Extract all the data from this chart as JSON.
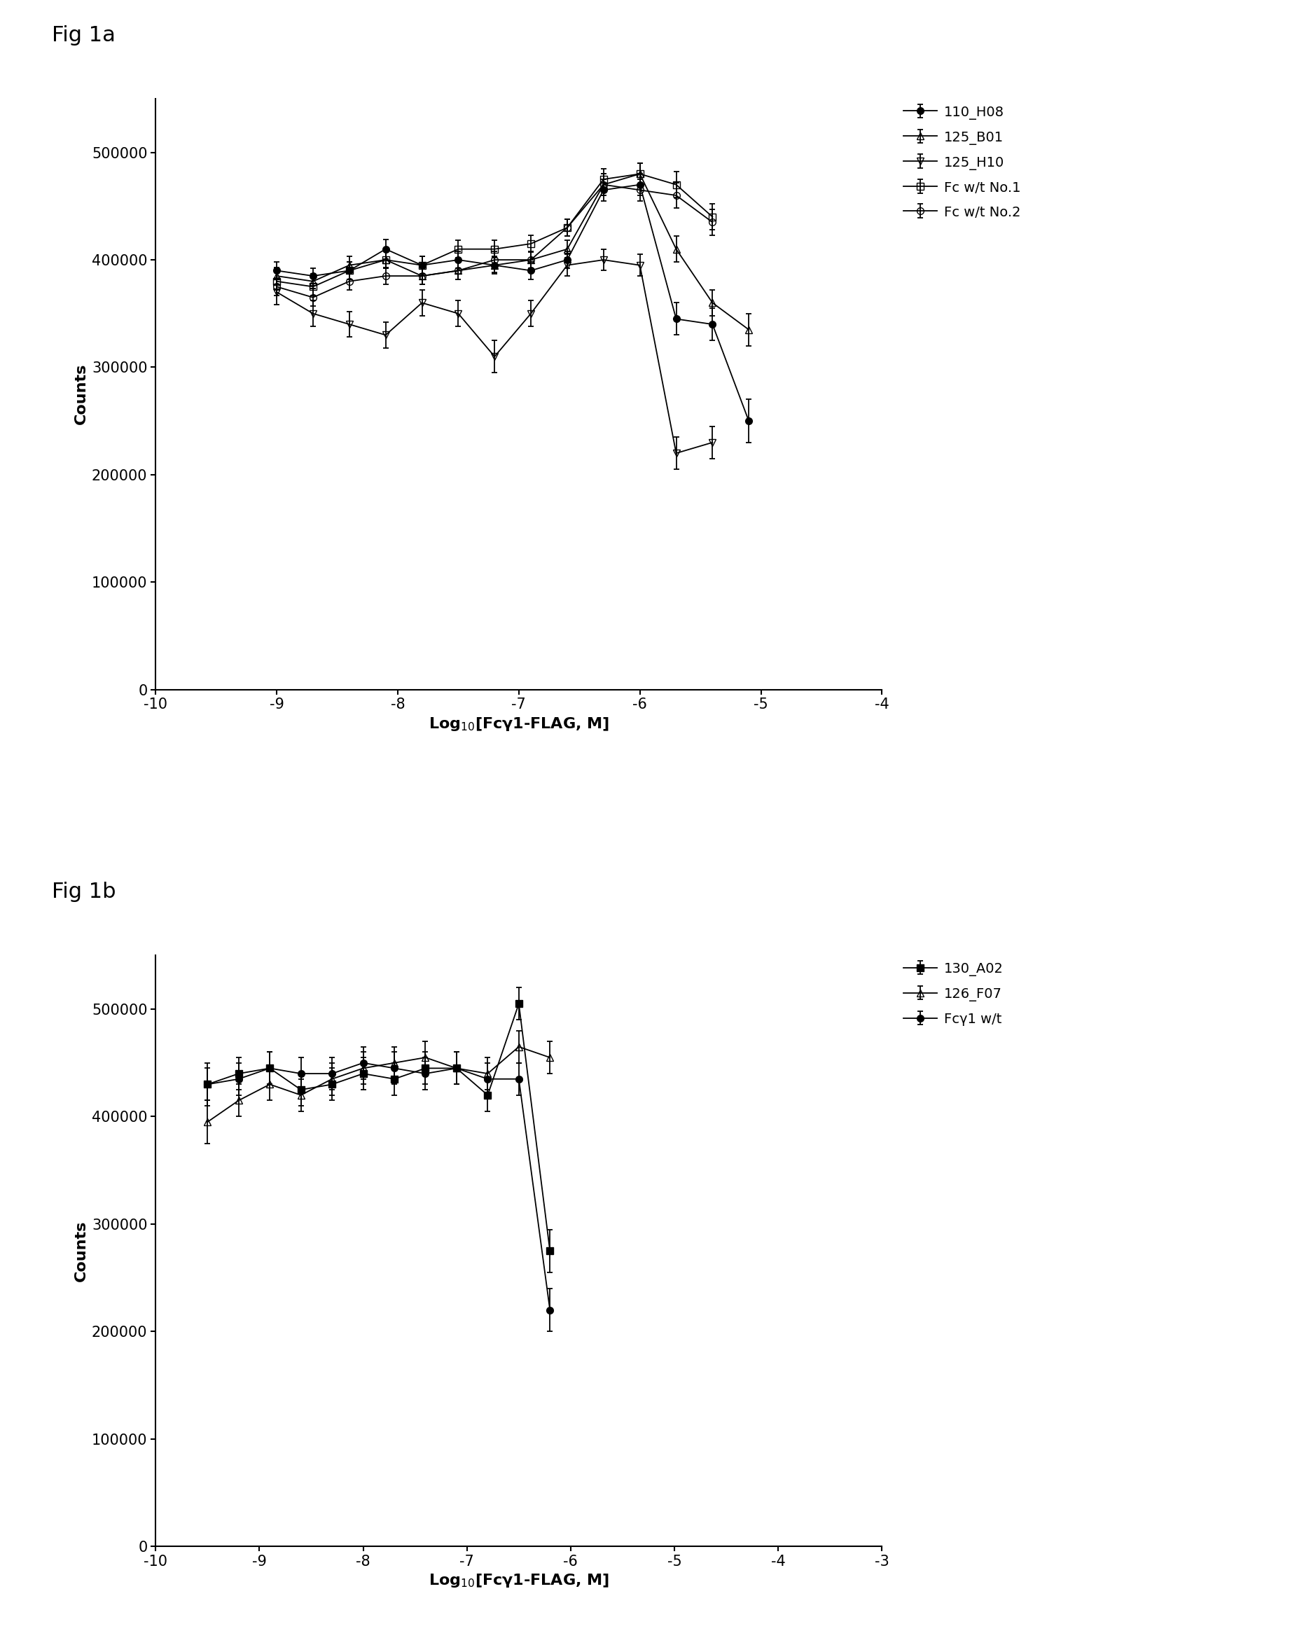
{
  "fig_labels": [
    "Fig 1a",
    "Fig 1b"
  ],
  "xlabel": "Log$_{10}$[Fcγ1-FLAG, M]",
  "ylabel": "Counts",
  "background_color": "#ffffff",
  "panel_a": {
    "xlim": [
      -10,
      -4
    ],
    "xticks": [
      -10,
      -9,
      -8,
      -7,
      -6,
      -5,
      -4
    ],
    "ylim": [
      0,
      550000
    ],
    "yticks": [
      0,
      100000,
      200000,
      300000,
      400000,
      500000
    ],
    "series": [
      {
        "label": "110_H08",
        "marker": "o",
        "fillstyle": "full",
        "color": "#000000",
        "x": [
          -9.0,
          -8.7,
          -8.4,
          -8.1,
          -7.8,
          -7.5,
          -7.2,
          -6.9,
          -6.6,
          -6.3,
          -6.0,
          -5.7,
          -5.4,
          -5.1
        ],
        "y": [
          390000,
          385000,
          390000,
          410000,
          395000,
          400000,
          395000,
          390000,
          400000,
          465000,
          470000,
          345000,
          340000,
          250000
        ],
        "yerr": [
          8000,
          7000,
          8000,
          9000,
          8000,
          8000,
          7000,
          8000,
          8000,
          10000,
          10000,
          15000,
          15000,
          20000
        ]
      },
      {
        "label": "125_B01",
        "marker": "^",
        "fillstyle": "none",
        "color": "#000000",
        "x": [
          -9.0,
          -8.7,
          -8.4,
          -8.1,
          -7.8,
          -7.5,
          -7.2,
          -6.9,
          -6.6,
          -6.3,
          -6.0,
          -5.7,
          -5.4,
          -5.1
        ],
        "y": [
          385000,
          380000,
          395000,
          400000,
          385000,
          390000,
          395000,
          400000,
          410000,
          470000,
          480000,
          410000,
          360000,
          335000
        ],
        "yerr": [
          8000,
          7000,
          8000,
          8000,
          8000,
          8000,
          8000,
          8000,
          8000,
          10000,
          10000,
          12000,
          12000,
          15000
        ]
      },
      {
        "label": "125_H10",
        "marker": "v",
        "fillstyle": "none",
        "color": "#000000",
        "x": [
          -9.0,
          -8.7,
          -8.4,
          -8.1,
          -7.8,
          -7.5,
          -7.2,
          -6.9,
          -6.6,
          -6.3,
          -6.0,
          -5.7,
          -5.4,
          -5.1
        ],
        "y": [
          370000,
          350000,
          340000,
          330000,
          360000,
          350000,
          310000,
          350000,
          395000,
          400000,
          395000,
          220000,
          230000,
          null
        ],
        "yerr": [
          12000,
          12000,
          12000,
          12000,
          12000,
          12000,
          15000,
          12000,
          10000,
          10000,
          10000,
          15000,
          15000,
          null
        ]
      },
      {
        "label": "Fc w/t No.1",
        "marker": "s",
        "fillstyle": "none",
        "color": "#000000",
        "x": [
          -9.0,
          -8.7,
          -8.4,
          -8.1,
          -7.8,
          -7.5,
          -7.2,
          -6.9,
          -6.6,
          -6.3,
          -6.0,
          -5.7,
          -5.4,
          -5.1
        ],
        "y": [
          380000,
          375000,
          390000,
          400000,
          395000,
          410000,
          410000,
          415000,
          430000,
          475000,
          480000,
          470000,
          440000,
          null
        ],
        "yerr": [
          8000,
          8000,
          8000,
          8000,
          8000,
          8000,
          8000,
          8000,
          8000,
          10000,
          10000,
          12000,
          12000,
          null
        ]
      },
      {
        "label": "Fc w/t No.2",
        "marker": "o",
        "fillstyle": "none",
        "color": "#000000",
        "x": [
          -9.0,
          -8.7,
          -8.4,
          -8.1,
          -7.8,
          -7.5,
          -7.2,
          -6.9,
          -6.6,
          -6.3,
          -6.0,
          -5.7,
          -5.4,
          -5.1
        ],
        "y": [
          375000,
          365000,
          380000,
          385000,
          385000,
          390000,
          400000,
          400000,
          430000,
          470000,
          465000,
          460000,
          435000,
          null
        ],
        "yerr": [
          8000,
          8000,
          8000,
          8000,
          8000,
          8000,
          8000,
          8000,
          8000,
          10000,
          10000,
          12000,
          12000,
          null
        ]
      }
    ]
  },
  "panel_b": {
    "xlim": [
      -10,
      -3
    ],
    "xticks": [
      -10,
      -9,
      -8,
      -7,
      -6,
      -5,
      -4,
      -3
    ],
    "ylim": [
      0,
      550000
    ],
    "yticks": [
      0,
      100000,
      200000,
      300000,
      400000,
      500000
    ],
    "series": [
      {
        "label": "130_A02",
        "marker": "s",
        "fillstyle": "full",
        "color": "#000000",
        "x": [
          -9.5,
          -9.2,
          -8.9,
          -8.6,
          -8.3,
          -8.0,
          -7.7,
          -7.4,
          -7.1,
          -6.8,
          -6.5,
          -6.2,
          -5.9
        ],
        "y": [
          430000,
          440000,
          445000,
          425000,
          430000,
          440000,
          435000,
          445000,
          445000,
          420000,
          505000,
          275000,
          null
        ],
        "yerr": [
          15000,
          15000,
          15000,
          15000,
          15000,
          15000,
          15000,
          15000,
          15000,
          15000,
          15000,
          20000,
          null
        ]
      },
      {
        "label": "126_F07",
        "marker": "^",
        "fillstyle": "none",
        "color": "#000000",
        "x": [
          -9.5,
          -9.2,
          -8.9,
          -8.6,
          -8.3,
          -8.0,
          -7.7,
          -7.4,
          -7.1,
          -6.8,
          -6.5,
          -6.2,
          -5.9
        ],
        "y": [
          395000,
          415000,
          430000,
          420000,
          435000,
          445000,
          450000,
          455000,
          445000,
          440000,
          465000,
          455000,
          null
        ],
        "yerr": [
          20000,
          15000,
          15000,
          15000,
          15000,
          15000,
          15000,
          15000,
          15000,
          15000,
          15000,
          15000,
          null
        ]
      },
      {
        "label": "Fcγ1 w/t",
        "marker": "o",
        "fillstyle": "full",
        "color": "#000000",
        "x": [
          -9.5,
          -9.2,
          -8.9,
          -8.6,
          -8.3,
          -8.0,
          -7.7,
          -7.4,
          -7.1,
          -6.8,
          -6.5,
          -6.2,
          -5.9
        ],
        "y": [
          430000,
          435000,
          445000,
          440000,
          440000,
          450000,
          445000,
          440000,
          445000,
          435000,
          435000,
          220000,
          null
        ],
        "yerr": [
          20000,
          15000,
          15000,
          15000,
          15000,
          15000,
          15000,
          15000,
          15000,
          15000,
          15000,
          20000,
          null
        ]
      }
    ]
  }
}
